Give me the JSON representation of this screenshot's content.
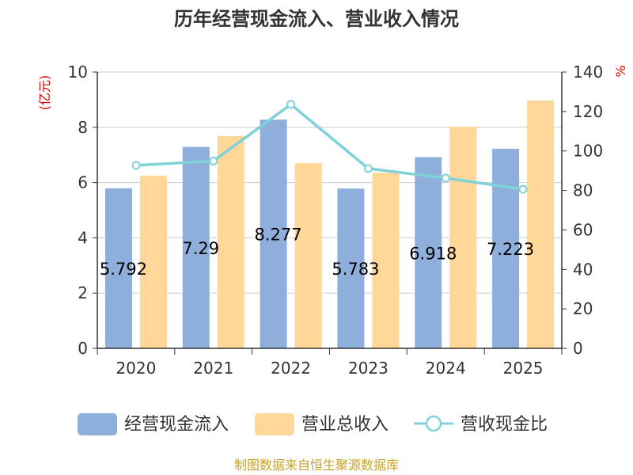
{
  "chart_data": {
    "type": "bar",
    "title": "历年经营现金流入、营业收入情况",
    "categories": [
      "2020",
      "2021",
      "2022",
      "2023",
      "2024",
      "2025"
    ],
    "series": [
      {
        "name": "经营现金流入",
        "kind": "bar",
        "axis": "left",
        "color": "#8eaedc",
        "values": [
          5.792,
          7.29,
          8.277,
          5.783,
          6.918,
          7.223
        ]
      },
      {
        "name": "营业总收入",
        "kind": "bar",
        "axis": "left",
        "color": "#ffd799",
        "values": [
          6.25,
          7.68,
          6.7,
          6.35,
          8.02,
          8.97
        ]
      },
      {
        "name": "营收现金比",
        "kind": "line",
        "axis": "right",
        "color": "#7fd3d8",
        "values": [
          92.7,
          94.9,
          123.6,
          91.1,
          86.3,
          80.6
        ]
      }
    ],
    "data_labels": [
      "5.792",
      "7.29",
      "8.277",
      "5.783",
      "6.918",
      "7.223"
    ],
    "y_left": {
      "label": "(亿元)",
      "min": 0,
      "max": 10,
      "ticks": [
        "0",
        "2",
        "4",
        "6",
        "8",
        "10"
      ]
    },
    "y_right": {
      "label": "%",
      "min": 0,
      "max": 140,
      "ticks": [
        "0",
        "20",
        "40",
        "60",
        "80",
        "100",
        "120",
        "140"
      ]
    },
    "grid": true,
    "legend_position": "bottom"
  },
  "source": "制图数据来自恒生聚源数据库"
}
